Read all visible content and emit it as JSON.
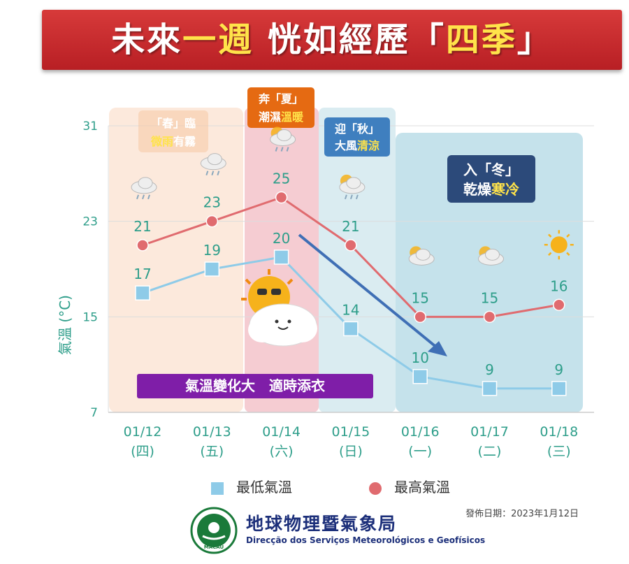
{
  "banner": {
    "part1": "未來",
    "part2": "一週",
    "part3": " 恍如經歷「",
    "part4": "四季",
    "part5": "」"
  },
  "seasons": {
    "spring": {
      "l1": "「春」臨",
      "l2a": "微雨",
      "l2b": "有霧"
    },
    "summer": {
      "l1": "奔「夏」",
      "l2a": "潮濕",
      "l2b": "溫暖"
    },
    "autumn": {
      "l1": "迎「秋」",
      "l2a": "大風",
      "l2b": "清涼"
    },
    "winter": {
      "l1": "入「冬」",
      "l2a": "乾燥",
      "l2b": "寒冷"
    }
  },
  "advice": "氣溫變化大　適時添衣",
  "legend": {
    "low": "最低氣溫",
    "high": "最高氣溫"
  },
  "footer": {
    "date": "發佈日期：2023年1月12日",
    "agency_zh": "地球物理暨氣象局",
    "agency_pt": "Direcção dos Serviços Meteorológicos e Geofísicos",
    "logo_text": "MACAU"
  },
  "colors": {
    "high": "#e06b6f",
    "low": "#8ecbe8",
    "axis_text": "#2e9e8a",
    "spring_bg": "#fbe5d6",
    "summer_bg": "#f4c7cd",
    "autumn_bg": "#d6eaf0",
    "winter_bg": "#b7dbe6"
  },
  "icons": [
    "rain-cloud-icon",
    "rain-cloud-icon",
    "partly-cloudy-rain-icon",
    "partly-cloudy-rain-icon",
    "partly-cloudy-icon",
    "partly-cloudy-icon",
    "sun-icon"
  ],
  "chart_data": {
    "type": "line",
    "categories": [
      "01/12",
      "01/13",
      "01/14",
      "01/15",
      "01/16",
      "01/17",
      "01/18"
    ],
    "weekdays": [
      "(四)",
      "(五)",
      "(六)",
      "(日)",
      "(一)",
      "(二)",
      "(三)"
    ],
    "ylabel": "氣溫 (°C)",
    "yticks": [
      7,
      15,
      23,
      31
    ],
    "ylim": [
      7,
      31
    ],
    "series": [
      {
        "name": "最高氣溫",
        "values": [
          21,
          23,
          25,
          21,
          15,
          15,
          16
        ]
      },
      {
        "name": "最低氣溫",
        "values": [
          17,
          19,
          20,
          14,
          10,
          9,
          9
        ]
      }
    ]
  }
}
